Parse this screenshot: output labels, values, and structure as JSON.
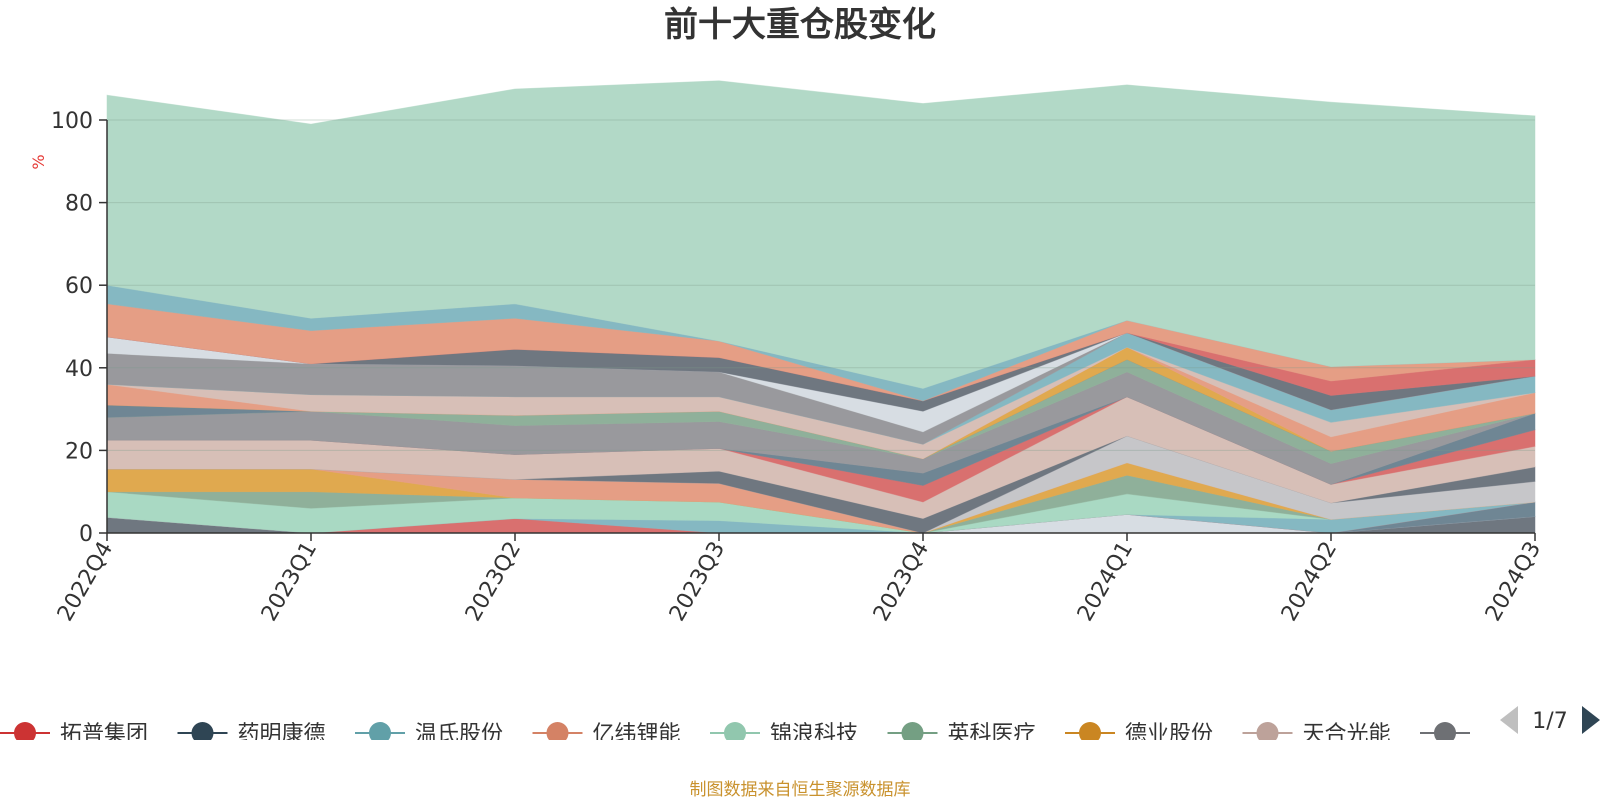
{
  "chart_data": {
    "type": "area",
    "stacked": true,
    "title": "前十大重仓股变化",
    "ylabel": "%",
    "ylim": [
      0,
      100
    ],
    "yticks": [
      0,
      20,
      40,
      60,
      80,
      100
    ],
    "grid": true,
    "legend_position": "bottom",
    "categories": [
      "2022Q4",
      "2023Q1",
      "2023Q2",
      "2023Q3",
      "2023Q4",
      "2024Q1",
      "2024Q2",
      "2024Q3"
    ],
    "series": [
      {
        "name": "",
        "color": "#6f7780",
        "values": [
          3.8,
          0,
          0,
          0,
          0,
          0,
          0,
          4.0
        ]
      },
      {
        "name": "",
        "color": "#d7dde3",
        "values": [
          0,
          0,
          0,
          0,
          0,
          4.5,
          0,
          0
        ]
      },
      {
        "name": "",
        "color": "#6f8694",
        "values": [
          0,
          0,
          0,
          0,
          0,
          0,
          0,
          3.5
        ]
      },
      {
        "name": "拓普集团",
        "color": "#d9706f",
        "values": [
          0,
          0,
          3.5,
          0,
          0,
          0,
          0,
          0
        ]
      },
      {
        "name": "温氏股份",
        "color": "#85b8c2",
        "values": [
          0,
          0,
          0,
          3.0,
          0,
          0,
          3.3,
          0
        ]
      },
      {
        "name": "锦浪科技",
        "color": "#a9d9c3",
        "values": [
          6.2,
          6.0,
          5.0,
          4.5,
          0,
          5.0,
          0,
          0
        ]
      },
      {
        "name": "英科医疗",
        "color": "#8fb09a",
        "values": [
          0,
          4.0,
          0,
          0,
          0,
          4.5,
          0,
          0
        ]
      },
      {
        "name": "德业股份",
        "color": "#e0a94f",
        "values": [
          5.5,
          5.5,
          0,
          0,
          0,
          3.0,
          0,
          0
        ]
      },
      {
        "name": "亿纬锂能",
        "color": "#e59e85",
        "values": [
          0,
          0,
          4.5,
          4.5,
          0,
          0,
          0,
          0
        ]
      },
      {
        "name": "",
        "color": "#c6c6c9",
        "values": [
          0,
          0,
          0,
          0,
          0,
          6.5,
          4.0,
          5.0
        ]
      },
      {
        "name": "",
        "color": "#6f7780",
        "values": [
          0,
          0,
          0,
          3.0,
          3.5,
          0,
          0,
          3.5
        ]
      },
      {
        "name": "天合光能",
        "color": "#d7bfb7",
        "values": [
          7.0,
          7.0,
          6.0,
          5.5,
          4.0,
          9.5,
          4.5,
          5.0
        ]
      },
      {
        "name": "",
        "color": "#d9706f",
        "values": [
          0,
          0,
          0,
          0,
          4.0,
          0,
          0,
          4.0
        ]
      },
      {
        "name": "",
        "color": "#6f8694",
        "values": [
          0,
          0,
          0,
          0,
          3.0,
          0,
          0,
          4.0
        ]
      },
      {
        "name": "",
        "color": "#99999d",
        "values": [
          5.5,
          7.0,
          7.0,
          6.5,
          3.5,
          6.0,
          5.0,
          0
        ]
      },
      {
        "name": "",
        "color": "#8fb09a",
        "values": [
          0,
          0,
          2.5,
          2.5,
          0,
          3.0,
          3.0,
          0
        ]
      },
      {
        "name": "药明康德",
        "color": "#6f8694",
        "values": [
          3.0,
          0,
          0,
          0,
          0,
          0,
          0,
          0
        ]
      },
      {
        "name": "",
        "color": "#e0a94f",
        "values": [
          0,
          0,
          0,
          0,
          0,
          3.0,
          0,
          0
        ]
      },
      {
        "name": "",
        "color": "#e59e85",
        "values": [
          5.0,
          0,
          0,
          0,
          0,
          0,
          3.5,
          5.0
        ]
      },
      {
        "name": "",
        "color": "#d7bfb7",
        "values": [
          0,
          4.0,
          4.5,
          3.5,
          3.5,
          0,
          3.5,
          0
        ]
      },
      {
        "name": "",
        "color": "#85b8c2",
        "values": [
          0,
          0,
          0,
          0,
          0,
          3.5,
          3.0,
          4.0
        ]
      },
      {
        "name": "",
        "color": "#99999d",
        "values": [
          7.5,
          7.5,
          7.5,
          6.0,
          3.0,
          0,
          0,
          0
        ]
      },
      {
        "name": "",
        "color": "#d7dde3",
        "values": [
          4.0,
          0,
          0,
          0,
          5.0,
          0,
          0,
          0
        ]
      },
      {
        "name": "",
        "color": "#6f7780",
        "values": [
          0,
          0,
          4.0,
          3.5,
          2.5,
          0,
          3.5,
          0
        ]
      },
      {
        "name": "",
        "color": "#d9706f",
        "values": [
          0,
          0,
          0,
          0,
          0,
          0,
          3.5,
          4.0
        ]
      },
      {
        "name": "",
        "color": "#e59e85",
        "values": [
          8.0,
          8.0,
          7.5,
          4.0,
          0,
          3.0,
          3.5,
          0
        ]
      },
      {
        "name": "",
        "color": "#85b8c2",
        "values": [
          4.5,
          3.0,
          3.5,
          0,
          3.0,
          0,
          0,
          0
        ]
      },
      {
        "name": "",
        "color": "#b2d9c7",
        "values": [
          46.0,
          47.0,
          52.0,
          63.0,
          69.0,
          57.0,
          64.0,
          59.0
        ]
      }
    ]
  },
  "legend": {
    "items": [
      {
        "label": "拓普集团",
        "color": "#cc3333"
      },
      {
        "label": "药明康德",
        "color": "#2f4554"
      },
      {
        "label": "温氏股份",
        "color": "#61a0a8"
      },
      {
        "label": "亿纬锂能",
        "color": "#d48265"
      },
      {
        "label": "锦浪科技",
        "color": "#91c7ae"
      },
      {
        "label": "英科医疗",
        "color": "#749f83"
      },
      {
        "label": "德业股份",
        "color": "#ca8622"
      },
      {
        "label": "天合光能",
        "color": "#bda29a"
      },
      {
        "label": "",
        "color": "#6e7074"
      }
    ],
    "page": "1/7"
  },
  "source_note": "制图数据来自恒生聚源数据库"
}
